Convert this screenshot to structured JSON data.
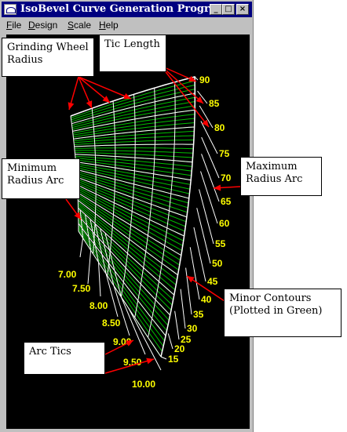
{
  "window": {
    "title": "IsoBevel Curve Generation Program",
    "minimize_glyph": "_",
    "maximize_glyph": "□",
    "close_glyph": "×"
  },
  "menu": [
    {
      "label": "File",
      "underline": "F",
      "rest": "ile"
    },
    {
      "label": "Design",
      "underline": "D",
      "rest": "esign"
    },
    {
      "label": "Scale",
      "underline": "S",
      "rest": "cale"
    },
    {
      "label": "Help",
      "underline": "H",
      "rest": "elp"
    }
  ],
  "plot": {
    "background": "#000000",
    "major_line_color": "#ffffff",
    "minor_line_color": "#00c000",
    "label_color": "#ffff00",
    "right_scale_labels": [
      "90",
      "85",
      "80",
      "75",
      "70",
      "65",
      "60",
      "55",
      "50",
      "45",
      "40",
      "35",
      "30",
      "25",
      "20",
      "15"
    ],
    "left_scale_labels": [
      "7.00",
      "7.50",
      "8.00",
      "8.50",
      "9.00",
      "9.50",
      "10.00"
    ]
  },
  "callouts": {
    "grinding_wheel": "Grinding Wheel Radius",
    "tic_length": "Tic Length",
    "minimum_radius": "Minimum Radius Arc",
    "maximum_radius": "Maximum Radius Arc",
    "minor_contours": "Minor Contours (Plotted in Green)",
    "arc_tics": "Arc Tics"
  },
  "annotation_arrow_color": "#ff0000"
}
